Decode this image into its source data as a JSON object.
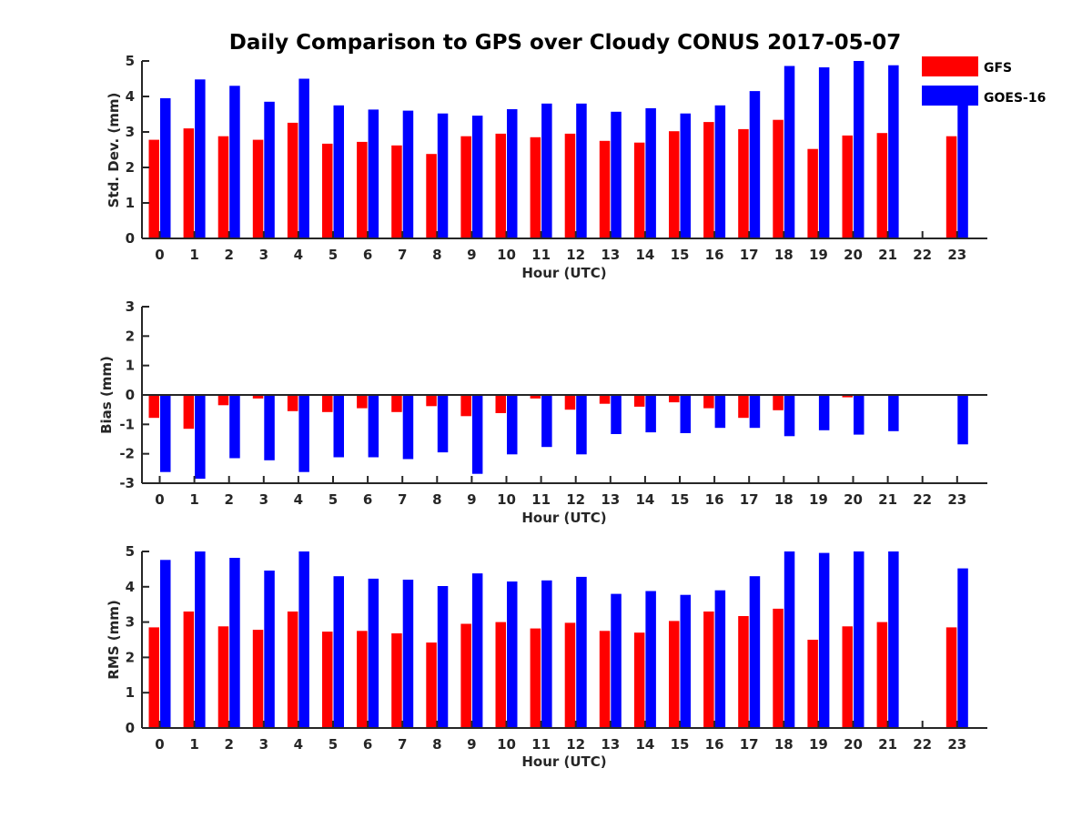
{
  "colors": {
    "gfs": "#ff0000",
    "goes": "#0000ff",
    "axis": "#262626"
  },
  "chart_data": [
    {
      "type": "bar",
      "title": "Daily Comparison to GPS over Cloudy CONUS 2017-05-07",
      "xlabel": "Hour (UTC)",
      "ylabel": "Std. Dev. (mm)",
      "ylim": [
        0,
        5
      ],
      "yticks": [
        0,
        1,
        2,
        3,
        4,
        5
      ],
      "categories": [
        "0",
        "1",
        "2",
        "3",
        "4",
        "5",
        "6",
        "7",
        "8",
        "9",
        "10",
        "11",
        "12",
        "13",
        "14",
        "15",
        "16",
        "17",
        "18",
        "19",
        "20",
        "21",
        "22",
        "23"
      ],
      "legend": {
        "placement": "top-right",
        "entries": [
          "GFS",
          "GOES-16"
        ]
      },
      "series": [
        {
          "name": "GFS",
          "values": [
            2.78,
            3.1,
            2.88,
            2.78,
            3.26,
            2.67,
            2.72,
            2.62,
            2.38,
            2.88,
            2.95,
            2.85,
            2.95,
            2.75,
            2.7,
            3.02,
            3.28,
            3.08,
            3.34,
            2.52,
            2.9,
            2.97,
            null,
            2.88
          ]
        },
        {
          "name": "GOES-16",
          "values": [
            3.95,
            4.48,
            4.3,
            3.85,
            4.5,
            3.75,
            3.63,
            3.6,
            3.52,
            3.46,
            3.64,
            3.8,
            3.8,
            3.57,
            3.67,
            3.52,
            3.75,
            4.15,
            4.86,
            4.82,
            5.0,
            4.88,
            null,
            3.9
          ]
        }
      ]
    },
    {
      "type": "bar",
      "xlabel": "Hour (UTC)",
      "ylabel": "Bias (mm)",
      "ylim": [
        -3,
        3
      ],
      "yticks": [
        -3,
        -2,
        -1,
        0,
        1,
        2,
        3
      ],
      "categories": [
        "0",
        "1",
        "2",
        "3",
        "4",
        "5",
        "6",
        "7",
        "8",
        "9",
        "10",
        "11",
        "12",
        "13",
        "14",
        "15",
        "16",
        "17",
        "18",
        "19",
        "20",
        "21",
        "22",
        "23"
      ],
      "series": [
        {
          "name": "GFS",
          "values": [
            -0.78,
            -1.15,
            -0.35,
            -0.12,
            -0.55,
            -0.58,
            -0.45,
            -0.58,
            -0.38,
            -0.72,
            -0.62,
            -0.12,
            -0.5,
            -0.3,
            -0.4,
            -0.25,
            -0.45,
            -0.78,
            -0.52,
            -0.02,
            -0.08,
            0.02,
            null,
            -0.02
          ]
        },
        {
          "name": "GOES-16",
          "values": [
            -2.62,
            -2.85,
            -2.15,
            -2.22,
            -2.62,
            -2.12,
            -2.12,
            -2.18,
            -1.95,
            -2.68,
            -2.02,
            -1.77,
            -2.02,
            -1.33,
            -1.27,
            -1.3,
            -1.12,
            -1.12,
            -1.4,
            -1.2,
            -1.35,
            -1.23,
            null,
            -1.68
          ]
        }
      ]
    },
    {
      "type": "bar",
      "xlabel": "Hour (UTC)",
      "ylabel": "RMS (mm)",
      "ylim": [
        0,
        5
      ],
      "yticks": [
        0,
        1,
        2,
        3,
        4,
        5
      ],
      "categories": [
        "0",
        "1",
        "2",
        "3",
        "4",
        "5",
        "6",
        "7",
        "8",
        "9",
        "10",
        "11",
        "12",
        "13",
        "14",
        "15",
        "16",
        "17",
        "18",
        "19",
        "20",
        "21",
        "22",
        "23"
      ],
      "series": [
        {
          "name": "GFS",
          "values": [
            2.85,
            3.3,
            2.88,
            2.78,
            3.3,
            2.73,
            2.75,
            2.68,
            2.42,
            2.95,
            3.0,
            2.82,
            2.98,
            2.75,
            2.7,
            3.03,
            3.3,
            3.17,
            3.38,
            2.5,
            2.88,
            3.0,
            null,
            2.85
          ]
        },
        {
          "name": "GOES-16",
          "values": [
            4.76,
            5.0,
            4.82,
            4.46,
            5.0,
            4.3,
            4.23,
            4.2,
            4.02,
            4.38,
            4.15,
            4.18,
            4.28,
            3.8,
            3.88,
            3.77,
            3.9,
            4.3,
            5.0,
            4.96,
            5.0,
            5.0,
            null,
            4.52
          ]
        }
      ]
    }
  ]
}
